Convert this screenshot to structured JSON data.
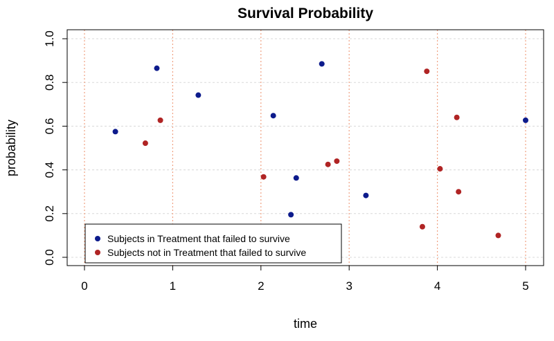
{
  "chart_data": {
    "type": "scatter",
    "title": "Survival Probability",
    "xlabel": "time",
    "ylabel": "probability",
    "xlim": [
      0,
      5
    ],
    "ylim": [
      0,
      1
    ],
    "xticks": [
      "0",
      "1",
      "2",
      "3",
      "4",
      "5"
    ],
    "yticks": [
      "0.0",
      "0.2",
      "0.4",
      "0.6",
      "0.8",
      "1.0"
    ],
    "horizontal_grid": true,
    "vertical_grid": true,
    "legend_position": "bottom-left",
    "series": [
      {
        "name": "Subjects in Treatment that failed to survive",
        "color": "#0d1b8c",
        "points": [
          {
            "x": 0.35,
            "y": 0.575
          },
          {
            "x": 0.82,
            "y": 0.865
          },
          {
            "x": 1.29,
            "y": 0.742
          },
          {
            "x": 2.14,
            "y": 0.648
          },
          {
            "x": 2.34,
            "y": 0.195
          },
          {
            "x": 2.4,
            "y": 0.363
          },
          {
            "x": 2.69,
            "y": 0.885
          },
          {
            "x": 3.19,
            "y": 0.283
          },
          {
            "x": 5.0,
            "y": 0.627
          }
        ]
      },
      {
        "name": "Subjects not in Treatment that failed to survive",
        "color": "#b02424",
        "points": [
          {
            "x": 0.69,
            "y": 0.522
          },
          {
            "x": 0.86,
            "y": 0.627
          },
          {
            "x": 2.03,
            "y": 0.368
          },
          {
            "x": 2.76,
            "y": 0.425
          },
          {
            "x": 2.86,
            "y": 0.44
          },
          {
            "x": 3.83,
            "y": 0.14
          },
          {
            "x": 3.88,
            "y": 0.851
          },
          {
            "x": 4.03,
            "y": 0.405
          },
          {
            "x": 4.22,
            "y": 0.64
          },
          {
            "x": 4.24,
            "y": 0.3
          },
          {
            "x": 4.69,
            "y": 0.1
          }
        ]
      }
    ],
    "vertical_line_color": "#f0a080",
    "grid_color": "#d8d8d8"
  }
}
